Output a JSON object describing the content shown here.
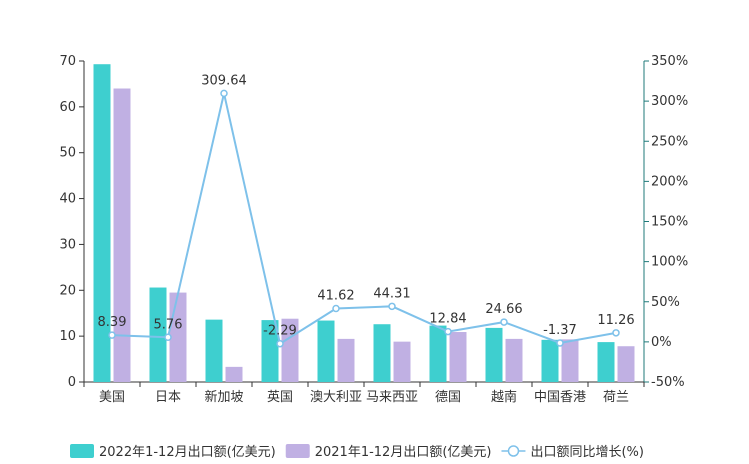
{
  "chart_data": {
    "type": "bar",
    "categories": [
      "美国",
      "日本",
      "新加坡",
      "英国",
      "澳大利亚",
      "马来西亚",
      "德国",
      "越南",
      "中国香港",
      "荷兰"
    ],
    "series": [
      {
        "name": "2022年1-12月出口额(亿美元)",
        "type": "bar",
        "axis": "left",
        "color": "#3ecfcf",
        "values": [
          69.3,
          20.6,
          13.6,
          13.5,
          13.4,
          12.6,
          12.3,
          11.8,
          9.2,
          8.7
        ]
      },
      {
        "name": "2021年1-12月出口额(亿美元)",
        "type": "bar",
        "axis": "left",
        "color": "#c0b0e3",
        "values": [
          64.0,
          19.5,
          3.3,
          13.8,
          9.4,
          8.8,
          10.9,
          9.4,
          9.3,
          7.8
        ]
      },
      {
        "name": "出口额同比增长(%)",
        "type": "line",
        "axis": "right",
        "color": "#7ec1ea",
        "values": [
          8.39,
          5.76,
          309.64,
          -2.29,
          41.62,
          44.31,
          12.84,
          24.66,
          -1.37,
          11.26
        ],
        "labels": [
          "8.39",
          "5.76",
          "309.64",
          "-2.29",
          "41.62",
          "44.31",
          "12.84",
          "24.66",
          "-1.37",
          "11.26"
        ]
      }
    ],
    "y_left": {
      "min": 0,
      "max": 70,
      "ticks": [
        "0",
        "10",
        "20",
        "30",
        "40",
        "50",
        "60",
        "70"
      ]
    },
    "y_right": {
      "min": -50,
      "max": 350,
      "ticks": [
        "-50%",
        "0%",
        "50%",
        "100%",
        "150%",
        "200%",
        "250%",
        "300%",
        "350%"
      ]
    },
    "axis_colors": {
      "left": "#333333",
      "right": "#1f7a7a",
      "bottom": "#333333"
    },
    "legend_position": "bottom",
    "grid": false
  }
}
